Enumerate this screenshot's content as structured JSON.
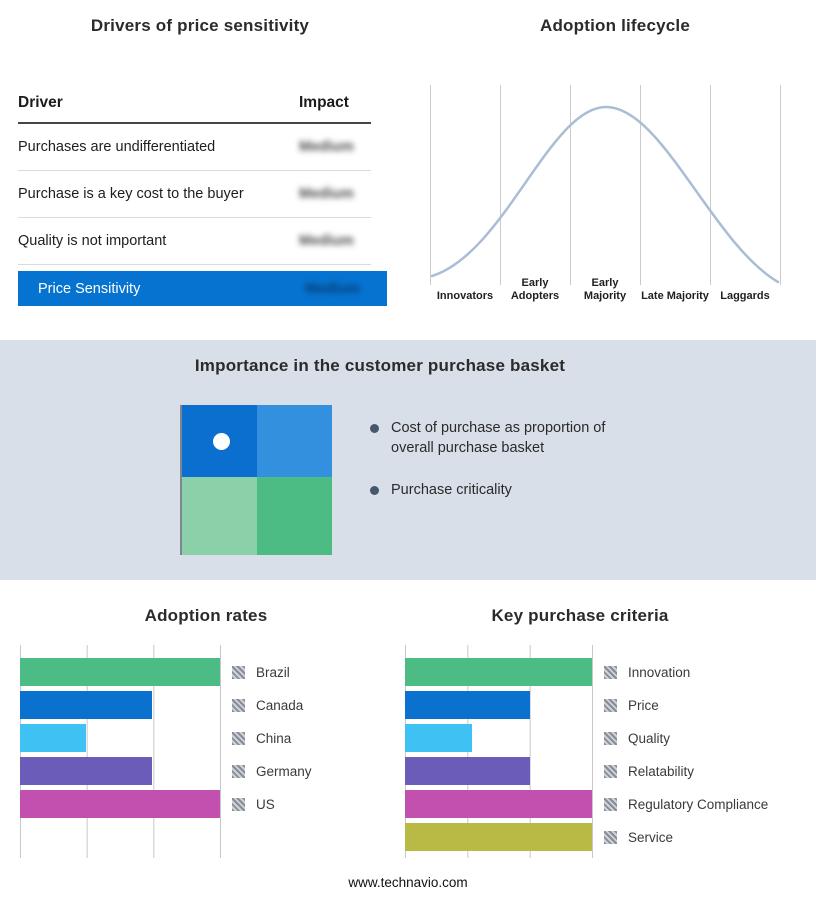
{
  "drivers": {
    "title": "Drivers of price sensitivity",
    "columns": {
      "driver": "Driver",
      "impact": "Impact"
    },
    "rows": [
      {
        "driver": "Purchases are undifferentiated",
        "impact": "Medium"
      },
      {
        "driver": "Purchase is a key cost to the buyer",
        "impact": "Medium"
      },
      {
        "driver": "Quality is not important",
        "impact": "Medium"
      }
    ],
    "impact_values_blurred": true,
    "highlight_row": {
      "label": "Price Sensitivity",
      "impact": "Medium",
      "bar_color": "#0673d1"
    }
  },
  "lifecycle": {
    "title": "Adoption lifecycle",
    "stages": [
      "Innovators",
      "Early Adopters",
      "Early Majority",
      "Late Majority",
      "Laggards"
    ],
    "curve_color": "#a9bdd5"
  },
  "purchase_basket": {
    "title": "Importance in the customer purchase basket",
    "bullets": [
      "Cost of purchase as proportion of overall purchase basket",
      "Purchase criticality"
    ],
    "quadrant_colors": {
      "top_left": "#0a6fce",
      "top_right": "#3390de",
      "bottom_left": "#8ad0a8",
      "bottom_right": "#4cbb84"
    },
    "band_background": "#d8dfe9"
  },
  "footer": {
    "website": "www.technavio.com"
  },
  "chart_data": [
    {
      "id": "adoption_lifecycle",
      "type": "area",
      "title": "Adoption lifecycle",
      "categories": [
        "Innovators",
        "Early Adopters",
        "Early Majority",
        "Late Majority",
        "Laggards"
      ],
      "shape": "bell curve peaking over Early Majority",
      "relative_heights": [
        0.05,
        0.55,
        1.0,
        0.55,
        0.05
      ],
      "grid": true,
      "curve_color": "#a9bdd5"
    },
    {
      "id": "adoption_rates",
      "type": "bar",
      "orientation": "horizontal",
      "title": "Adoption rates",
      "categories": [
        "Brazil",
        "Canada",
        "China",
        "Germany",
        "US"
      ],
      "values": [
        100,
        66,
        33,
        66,
        100
      ],
      "xlim": [
        0,
        100
      ],
      "colors": [
        "#4cbb84",
        "#0a72ce",
        "#3fc2f3",
        "#6a5cb8",
        "#c150ae"
      ],
      "grid": true,
      "legend_position": "right"
    },
    {
      "id": "key_purchase_criteria",
      "type": "bar",
      "orientation": "horizontal",
      "title": "Key purchase criteria",
      "categories": [
        "Innovation",
        "Price",
        "Quality",
        "Relatability",
        "Regulatory Compliance",
        "Service"
      ],
      "values": [
        100,
        67,
        36,
        67,
        100,
        100
      ],
      "xlim": [
        0,
        100
      ],
      "colors": [
        "#4cbb84",
        "#0a72ce",
        "#3fc2f3",
        "#6a5cb8",
        "#c150ae",
        "#b8ba45"
      ],
      "grid": true,
      "legend_position": "right"
    }
  ]
}
